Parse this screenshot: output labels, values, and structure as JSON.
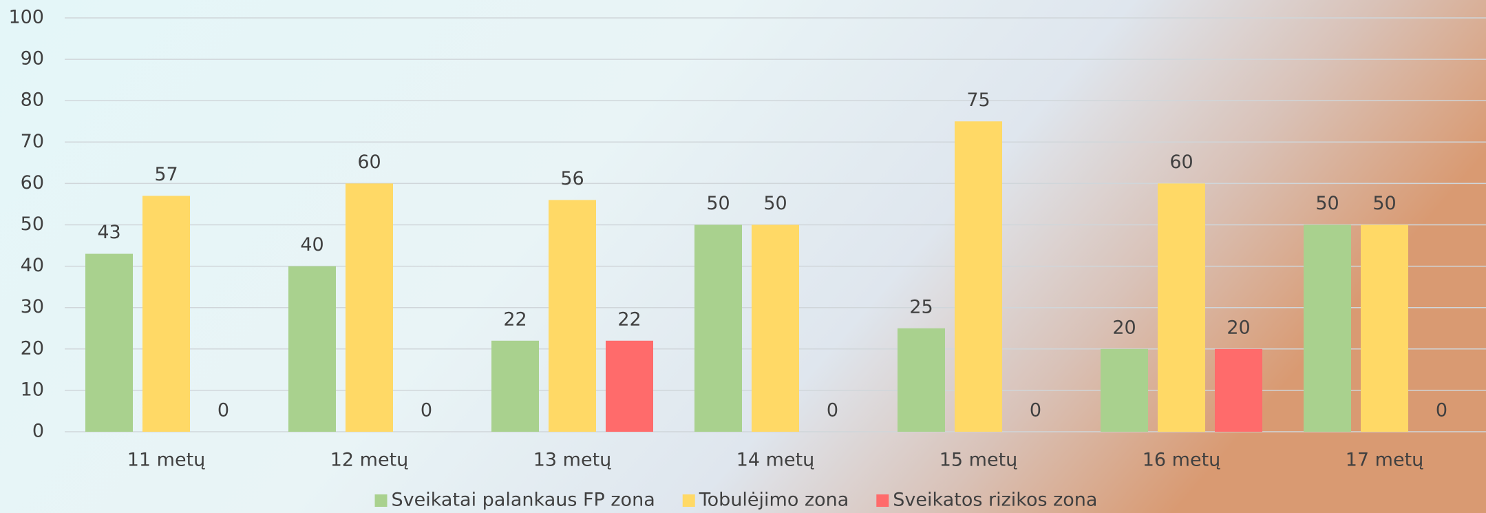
{
  "chart_data": {
    "type": "bar",
    "categories": [
      "11 metų",
      "12 metų",
      "13 metų",
      "14 metų",
      "15 metų",
      "16 metų",
      "17 metų"
    ],
    "series": [
      {
        "name": "Sveikatai palankaus FP zona",
        "color": "#a9d18e",
        "values": [
          43,
          40,
          22,
          50,
          25,
          20,
          50
        ]
      },
      {
        "name": "Tobulėjimo zona",
        "color": "#ffd966",
        "values": [
          57,
          60,
          56,
          50,
          75,
          60,
          50
        ]
      },
      {
        "name": "Sveikatos rizikos zona",
        "color": "#ff6b6b",
        "values": [
          0,
          0,
          22,
          0,
          0,
          20,
          0
        ]
      }
    ],
    "ylim": [
      0,
      100
    ],
    "yticks": [
      0,
      10,
      20,
      30,
      40,
      50,
      60,
      70,
      80,
      90,
      100
    ],
    "grid": true,
    "legend": "bottom"
  }
}
